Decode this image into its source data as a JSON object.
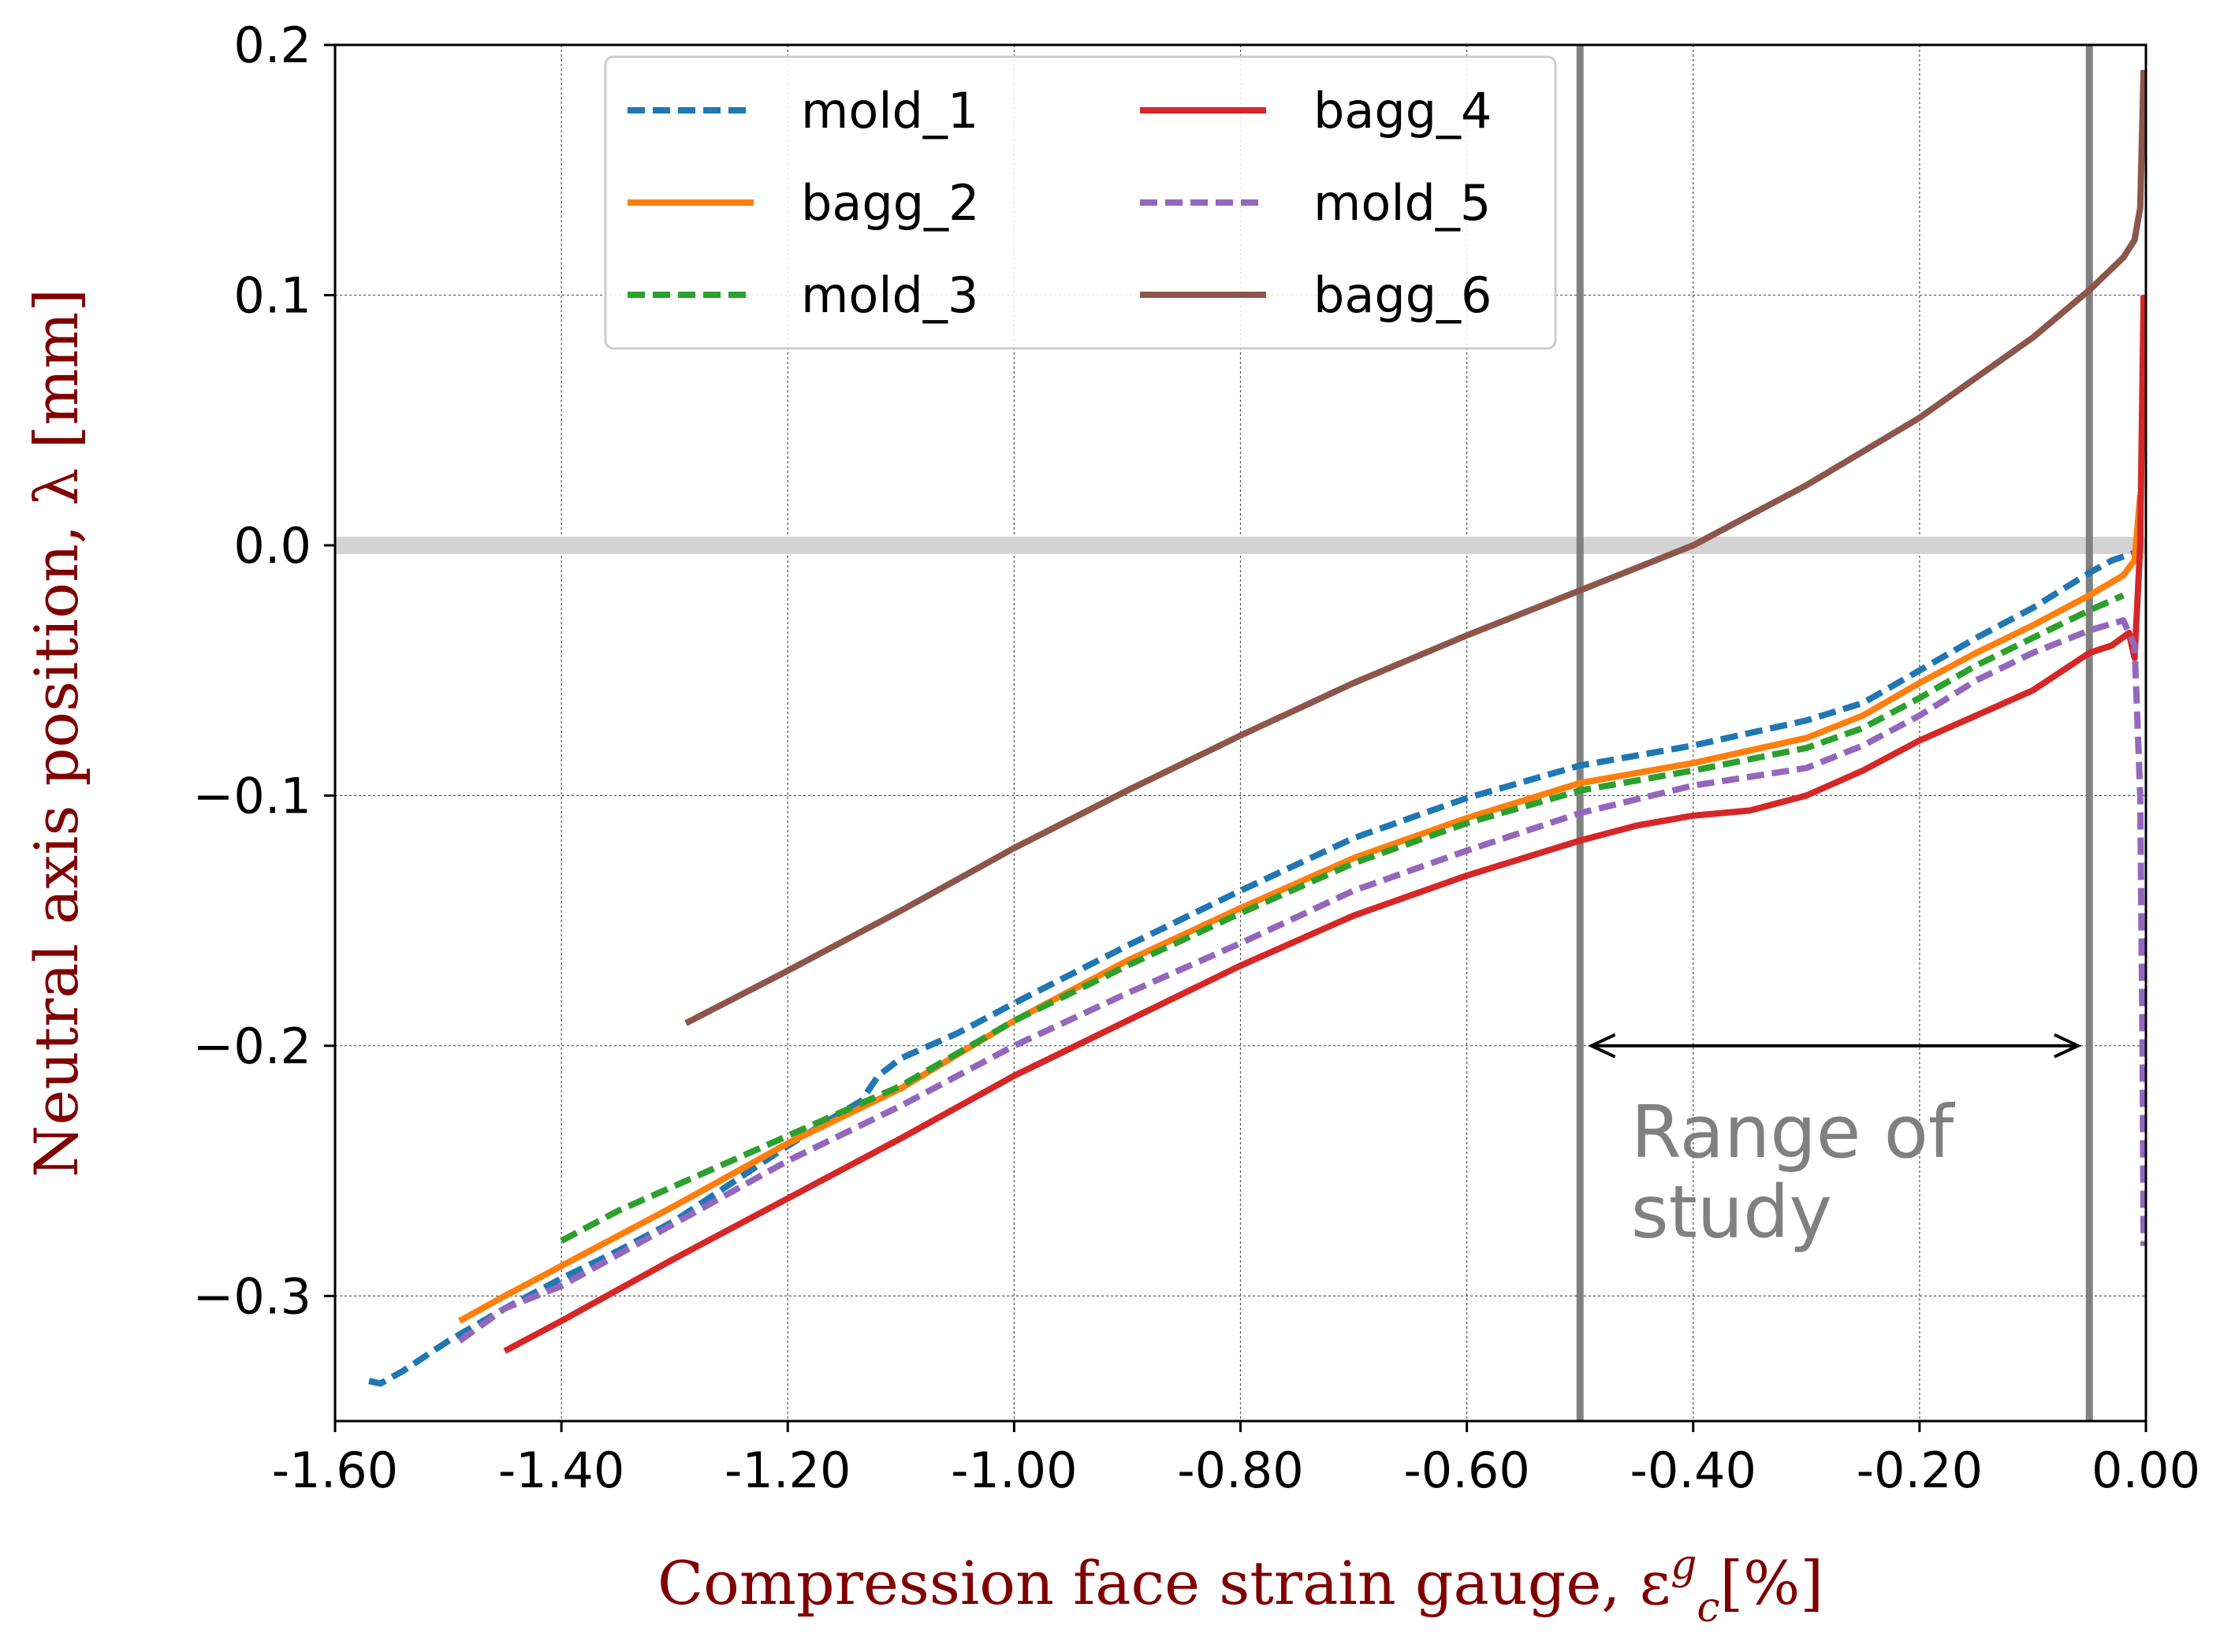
{
  "chart_data": {
    "type": "line",
    "title": "",
    "xlabel": "Compression face strain gauge, ε",
    "xlabel_sub": "c",
    "xlabel_sup": "g",
    "xlabel_unit": "[%]",
    "ylabel": "Neutral axis position, λ [mm]",
    "xlim": [
      -1.6,
      0.0
    ],
    "ylim": [
      -0.35,
      0.2
    ],
    "xticks": [
      -1.6,
      -1.4,
      -1.2,
      -1.0,
      -0.8,
      -0.6,
      -0.4,
      -0.2,
      0.0
    ],
    "xtick_labels": [
      "-1.60",
      "-1.40",
      "-1.20",
      "-1.00",
      "-0.80",
      "-0.60",
      "-0.40",
      "-0.20",
      "0.00"
    ],
    "yticks": [
      -0.3,
      -0.2,
      -0.1,
      0.0,
      0.1,
      0.2
    ],
    "ytick_labels": [
      "−0.3",
      "−0.2",
      "−0.1",
      "0.0",
      "0.1",
      "0.2"
    ],
    "grid": true,
    "reference_lines": {
      "horizontal_y": 0.0,
      "horizontal_color": "#d3d3d3",
      "vertical_x": [
        -0.5,
        -0.05
      ],
      "vertical_color": "#808080"
    },
    "range_arrow": {
      "from": -0.49,
      "to": -0.06,
      "y": -0.2
    },
    "annotation": {
      "line1": "Range of",
      "line2": "study",
      "x": -0.455,
      "y1": -0.235,
      "y2": -0.267,
      "color": "#808080"
    },
    "legend": {
      "position": "top-center",
      "columns": 2
    },
    "series": [
      {
        "name": "mold_1",
        "color": "#1f77b4",
        "dashed": true,
        "x": [
          -1.57,
          -1.56,
          -1.54,
          -1.5,
          -1.45,
          -1.4,
          -1.35,
          -1.3,
          -1.26,
          -1.2,
          -1.15,
          -1.135,
          -1.12,
          -1.1,
          -1.05,
          -1.0,
          -0.9,
          -0.8,
          -0.7,
          -0.6,
          -0.5,
          -0.4,
          -0.3,
          -0.25,
          -0.2,
          -0.15,
          -0.1,
          -0.05,
          -0.03,
          -0.01
        ],
        "y": [
          -0.334,
          -0.335,
          -0.33,
          -0.318,
          -0.305,
          -0.293,
          -0.282,
          -0.27,
          -0.258,
          -0.24,
          -0.226,
          -0.222,
          -0.212,
          -0.205,
          -0.195,
          -0.183,
          -0.16,
          -0.138,
          -0.117,
          -0.101,
          -0.088,
          -0.08,
          -0.07,
          -0.063,
          -0.05,
          -0.037,
          -0.025,
          -0.011,
          -0.006,
          -0.003
        ]
      },
      {
        "name": "bagg_2",
        "color": "#ff7f0e",
        "dashed": false,
        "x": [
          -1.49,
          -1.45,
          -1.4,
          -1.35,
          -1.3,
          -1.2,
          -1.1,
          -1.0,
          -0.9,
          -0.8,
          -0.7,
          -0.6,
          -0.5,
          -0.4,
          -0.3,
          -0.25,
          -0.2,
          -0.15,
          -0.1,
          -0.05,
          -0.02,
          -0.01,
          -0.005
        ],
        "y": [
          -0.31,
          -0.3,
          -0.288,
          -0.276,
          -0.264,
          -0.239,
          -0.217,
          -0.19,
          -0.166,
          -0.145,
          -0.125,
          -0.109,
          -0.095,
          -0.087,
          -0.077,
          -0.068,
          -0.055,
          -0.043,
          -0.032,
          -0.02,
          -0.012,
          -0.006,
          0.02
        ]
      },
      {
        "name": "mold_3",
        "color": "#2ca02c",
        "dashed": true,
        "x": [
          -1.4,
          -1.35,
          -1.3,
          -1.2,
          -1.1,
          -1.0,
          -0.9,
          -0.8,
          -0.7,
          -0.6,
          -0.5,
          -0.4,
          -0.3,
          -0.25,
          -0.2,
          -0.15,
          -0.1,
          -0.05,
          -0.02
        ],
        "y": [
          -0.278,
          -0.266,
          -0.256,
          -0.236,
          -0.216,
          -0.19,
          -0.168,
          -0.147,
          -0.127,
          -0.111,
          -0.098,
          -0.09,
          -0.081,
          -0.073,
          -0.061,
          -0.048,
          -0.037,
          -0.026,
          -0.02
        ]
      },
      {
        "name": "bagg_4",
        "color": "#d62728",
        "dashed": false,
        "x": [
          -1.45,
          -1.4,
          -1.3,
          -1.2,
          -1.1,
          -1.0,
          -0.9,
          -0.8,
          -0.7,
          -0.6,
          -0.5,
          -0.45,
          -0.4,
          -0.35,
          -0.3,
          -0.25,
          -0.2,
          -0.15,
          -0.1,
          -0.05,
          -0.03,
          -0.015,
          -0.01,
          -0.005,
          -0.002
        ],
        "y": [
          -0.322,
          -0.31,
          -0.285,
          -0.261,
          -0.237,
          -0.212,
          -0.19,
          -0.168,
          -0.148,
          -0.132,
          -0.118,
          -0.112,
          -0.108,
          -0.106,
          -0.1,
          -0.09,
          -0.078,
          -0.068,
          -0.058,
          -0.043,
          -0.04,
          -0.035,
          -0.045,
          0.0,
          0.1
        ]
      },
      {
        "name": "mold_5",
        "color": "#9467bd",
        "dashed": true,
        "x": [
          -1.49,
          -1.45,
          -1.4,
          -1.3,
          -1.2,
          -1.1,
          -1.0,
          -0.9,
          -0.8,
          -0.7,
          -0.6,
          -0.5,
          -0.4,
          -0.3,
          -0.25,
          -0.2,
          -0.15,
          -0.1,
          -0.05,
          -0.02,
          -0.01,
          -0.005,
          -0.003,
          -0.002
        ],
        "y": [
          -0.318,
          -0.305,
          -0.296,
          -0.271,
          -0.246,
          -0.224,
          -0.2,
          -0.179,
          -0.159,
          -0.138,
          -0.122,
          -0.107,
          -0.096,
          -0.089,
          -0.08,
          -0.068,
          -0.054,
          -0.043,
          -0.034,
          -0.03,
          -0.04,
          -0.1,
          -0.2,
          -0.28
        ]
      },
      {
        "name": "bagg_6",
        "color": "#8c564b",
        "dashed": false,
        "x": [
          -1.29,
          -1.2,
          -1.1,
          -1.0,
          -0.9,
          -0.8,
          -0.7,
          -0.6,
          -0.5,
          -0.4,
          -0.3,
          -0.2,
          -0.1,
          -0.05,
          -0.02,
          -0.01,
          -0.005,
          -0.002
        ],
        "y": [
          -0.191,
          -0.17,
          -0.146,
          -0.121,
          -0.098,
          -0.076,
          -0.055,
          -0.036,
          -0.018,
          0.0,
          0.024,
          0.051,
          0.083,
          0.102,
          0.115,
          0.122,
          0.135,
          0.19
        ]
      }
    ]
  }
}
